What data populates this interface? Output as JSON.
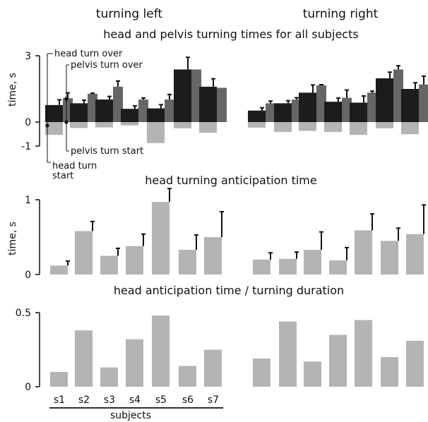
{
  "header": {
    "turning_left": "turning left",
    "turning_right": "turning  right"
  },
  "chart_data": [
    {
      "type": "bar",
      "title": "head and pelvis turning times for all subjects",
      "ylabel": "time, s",
      "ylim": [
        -1,
        3
      ],
      "yticks": [
        "3",
        "0",
        "-1"
      ],
      "annotations": {
        "head_turn_over": "head turn over",
        "pelvis_turn_over": "pelvis turn over",
        "pelvis_turn_start": "pelvis turn start",
        "head_turn_start_1": "head turn",
        "head_turn_start_2": "start"
      },
      "colors": {
        "head": "#1c1c1c",
        "pelvis": "#666666",
        "start": "#b4b4b4"
      },
      "groups": [
        {
          "name": "turning left",
          "head_over": [
            0.77,
            0.85,
            1.02,
            0.6,
            0.62,
            2.38,
            1.6
          ],
          "head_over_err": [
            0.24,
            0.14,
            0.14,
            0.13,
            0.17,
            0.55,
            0.36
          ],
          "pelvis_over": [
            1.08,
            1.28,
            1.6,
            1.02,
            1.02,
            2.38,
            1.55
          ],
          "pelvis_over_err": [
            0.24,
            0.03,
            0.26,
            0.07,
            0.23,
            0,
            0
          ],
          "pelvis_start": [
            -0.58,
            -0.27,
            -0.24,
            -0.15,
            -0.95,
            -0.28,
            -0.48
          ]
        },
        {
          "name": "turning right",
          "head_over": [
            0.52,
            0.85,
            1.33,
            0.92,
            0.88,
            1.98,
            1.5
          ],
          "head_over_err": [
            0.13,
            0.12,
            0.35,
            0.17,
            0.3,
            0.28,
            0.28
          ],
          "pelvis_over": [
            0.85,
            1.02,
            1.66,
            1.1,
            1.33,
            2.38,
            1.7
          ],
          "pelvis_over_err": [
            0.1,
            0.08,
            0.03,
            0.35,
            0.07,
            0.17,
            0.38
          ],
          "pelvis_start": [
            -0.25,
            -0.45,
            -0.4,
            -0.45,
            -0.58,
            -0.28,
            -0.55
          ]
        }
      ]
    },
    {
      "type": "bar",
      "title": "head turning anticipation time",
      "ylabel": "time, s",
      "ylim": [
        0,
        1
      ],
      "yticks": [
        "1",
        "0"
      ],
      "color": "#b4b4b4",
      "groups": [
        {
          "name": "turning left",
          "values": [
            0.12,
            0.58,
            0.25,
            0.38,
            0.97,
            0.33,
            0.5
          ],
          "errors": [
            0.06,
            0.13,
            0.1,
            0.16,
            0.18,
            0.2,
            0.34
          ]
        },
        {
          "name": "turning right",
          "values": [
            0.2,
            0.21,
            0.33,
            0.19,
            0.59,
            0.45,
            0.54
          ],
          "errors": [
            0.09,
            0.09,
            0.24,
            0.17,
            0.22,
            0.17,
            0.39
          ]
        }
      ]
    },
    {
      "type": "bar",
      "title": "head anticipation time / turning duration",
      "ylim": [
        0,
        0.5
      ],
      "yticks": [
        "0.5",
        "0"
      ],
      "color": "#b4b4b4",
      "categories": [
        "s1",
        "s2",
        "s3",
        "s4",
        "s5",
        "s6",
        "s7"
      ],
      "xlabel": "subjects",
      "groups": [
        {
          "name": "turning left",
          "values": [
            0.1,
            0.38,
            0.13,
            0.32,
            0.48,
            0.14,
            0.25
          ]
        },
        {
          "name": "turning right",
          "values": [
            0.19,
            0.44,
            0.17,
            0.35,
            0.45,
            0.2,
            0.31
          ]
        }
      ]
    }
  ]
}
